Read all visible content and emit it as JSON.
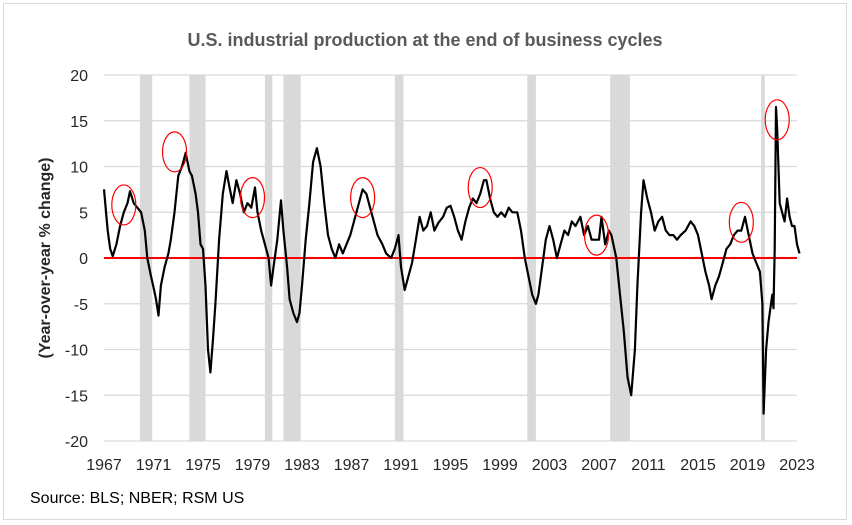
{
  "chart_data": {
    "type": "line",
    "title": "U.S. industrial production at the end of business cycles",
    "xlabel": "",
    "ylabel": "(Year-over-year % change)",
    "xlim": [
      1967,
      2023
    ],
    "ylim": [
      -20,
      20
    ],
    "x_ticks": [
      "1967",
      "1971",
      "1975",
      "1979",
      "1983",
      "1987",
      "1991",
      "1995",
      "1999",
      "2003",
      "2007",
      "2011",
      "2015",
      "2019",
      "2023"
    ],
    "y_ticks": [
      20,
      15,
      10,
      5,
      0,
      -5,
      -10,
      -15,
      -20
    ],
    "grid": true,
    "zero_line_color": "#ff0000",
    "line_color": "#000000",
    "recession_color": "#d9d9d9",
    "annotation_color": "#ff0000",
    "recessions": [
      [
        1969.9,
        1970.9
      ],
      [
        1973.9,
        1975.2
      ],
      [
        1980.0,
        1980.6
      ],
      [
        1981.5,
        1982.9
      ],
      [
        1990.5,
        1991.2
      ],
      [
        2001.2,
        2001.9
      ],
      [
        2007.9,
        2009.5
      ],
      [
        2020.1,
        2020.4
      ]
    ],
    "highlighted_peaks": [
      [
        1968.6,
        5.8
      ],
      [
        1972.7,
        11.6
      ],
      [
        1979.0,
        6.6
      ],
      [
        1987.9,
        6.6
      ],
      [
        1997.4,
        7.7
      ],
      [
        2006.8,
        2.5
      ],
      [
        2018.5,
        3.9
      ],
      [
        2021.4,
        15.1
      ]
    ],
    "series": [
      {
        "x": [
          1967.0,
          1967.3,
          1967.5,
          1967.7,
          1968.0,
          1968.3,
          1968.6,
          1968.9,
          1969.1,
          1969.4,
          1969.7,
          1970.0,
          1970.3,
          1970.5,
          1970.8,
          1971.0,
          1971.2,
          1971.4,
          1971.6,
          1971.9,
          1972.2,
          1972.4,
          1972.7,
          1973.0,
          1973.3,
          1973.6,
          1973.9,
          1974.1,
          1974.4,
          1974.6,
          1974.8,
          1975.0,
          1975.2,
          1975.4,
          1975.6,
          1975.8,
          1976.0,
          1976.3,
          1976.6,
          1976.9,
          1977.1,
          1977.4,
          1977.7,
          1978.0,
          1978.3,
          1978.6,
          1978.9,
          1979.2,
          1979.4,
          1979.7,
          1980.0,
          1980.3,
          1980.5,
          1980.7,
          1981.0,
          1981.3,
          1981.5,
          1981.8,
          1982.0,
          1982.3,
          1982.6,
          1982.8,
          1983.0,
          1983.3,
          1983.6,
          1983.9,
          1984.2,
          1984.5,
          1984.8,
          1985.1,
          1985.4,
          1985.7,
          1986.0,
          1986.3,
          1986.6,
          1986.9,
          1987.2,
          1987.6,
          1987.9,
          1988.2,
          1988.5,
          1988.8,
          1989.1,
          1989.5,
          1989.8,
          1990.2,
          1990.5,
          1990.8,
          1991.0,
          1991.3,
          1991.6,
          1991.9,
          1992.2,
          1992.5,
          1992.8,
          1993.1,
          1993.4,
          1993.7,
          1994.0,
          1994.4,
          1994.7,
          1995.0,
          1995.3,
          1995.6,
          1995.9,
          1996.2,
          1996.5,
          1996.8,
          1997.1,
          1997.4,
          1997.7,
          1997.9,
          1998.2,
          1998.5,
          1998.8,
          1999.1,
          1999.4,
          1999.7,
          2000.0,
          2000.4,
          2000.7,
          2001.0,
          2001.3,
          2001.6,
          2001.9,
          2002.1,
          2002.4,
          2002.7,
          2003.0,
          2003.3,
          2003.6,
          2003.9,
          2004.2,
          2004.5,
          2004.8,
          2005.1,
          2005.5,
          2005.8,
          2006.1,
          2006.4,
          2006.7,
          2007.0,
          2007.2,
          2007.5,
          2007.8,
          2008.0,
          2008.4,
          2008.7,
          2009.0,
          2009.3,
          2009.6,
          2009.9,
          2010.1,
          2010.4,
          2010.6,
          2010.9,
          2011.2,
          2011.5,
          2011.8,
          2012.1,
          2012.4,
          2012.7,
          2013.0,
          2013.3,
          2013.6,
          2014.0,
          2014.4,
          2014.7,
          2015.0,
          2015.3,
          2015.6,
          2015.9,
          2016.1,
          2016.4,
          2016.7,
          2017.0,
          2017.3,
          2017.6,
          2017.9,
          2018.2,
          2018.5,
          2018.8,
          2019.1,
          2019.4,
          2019.7,
          2020.0,
          2020.2,
          2020.3,
          2020.5,
          2020.7,
          2020.9,
          2021.0,
          2021.1,
          2021.2,
          2021.3,
          2021.4,
          2021.6,
          2021.8,
          2022.0,
          2022.2,
          2022.4,
          2022.6,
          2022.8,
          2023.0,
          2023.2
        ],
        "y": [
          7.5,
          3,
          1,
          0.2,
          1.5,
          3.5,
          5,
          6,
          7.3,
          6,
          5.5,
          5,
          3,
          0,
          -2,
          -3.2,
          -4.5,
          -6.3,
          -3,
          -1,
          0.5,
          2,
          5,
          9,
          10,
          11.5,
          9.5,
          9,
          7,
          5,
          1.5,
          1,
          -3,
          -10,
          -12.5,
          -9,
          -5,
          2,
          7,
          9.5,
          8,
          6,
          8.5,
          7,
          5,
          6,
          5.5,
          7.7,
          5,
          3,
          1.5,
          0,
          -3,
          -1,
          2,
          6.3,
          3,
          -1,
          -4.5,
          -6,
          -7,
          -6,
          -3,
          2,
          6,
          10.5,
          12,
          10,
          6,
          2.5,
          1,
          0,
          1.5,
          0.5,
          1.5,
          2.5,
          4,
          6,
          7.5,
          7,
          5.5,
          4,
          2.5,
          1.5,
          0.5,
          0,
          1,
          2.5,
          -1,
          -3.5,
          -2,
          -0.5,
          2,
          4.5,
          3,
          3.5,
          5,
          3,
          3.8,
          4.5,
          5.5,
          5.7,
          4.5,
          3,
          2,
          4,
          5.5,
          6.5,
          6,
          7,
          8.5,
          8.5,
          6.5,
          5,
          4.5,
          5,
          4.5,
          5.5,
          5,
          5,
          3,
          0,
          -2,
          -4,
          -5,
          -4,
          -1,
          2,
          3.5,
          2,
          0,
          1.5,
          3,
          2.5,
          4,
          3.5,
          4.5,
          2.5,
          3.5,
          2,
          2,
          2,
          4.5,
          1.5,
          3,
          2.5,
          0,
          -4,
          -8,
          -13,
          -15,
          -10,
          -3,
          5,
          8.5,
          6.5,
          5,
          3,
          4,
          4.5,
          3,
          2.5,
          2.5,
          2,
          2.5,
          3,
          4,
          3.5,
          2.5,
          0.5,
          -1.5,
          -3,
          -4.5,
          -3,
          -2,
          -0.5,
          1,
          1.5,
          2.5,
          3,
          3,
          4.5,
          2.5,
          0.5,
          -0.5,
          -1.5,
          -5,
          -17,
          -10,
          -7,
          -5,
          -4,
          -5.5,
          1,
          16.5,
          14,
          6,
          5,
          4,
          6.5,
          4.5,
          3.5,
          3.5,
          1.5,
          0.5
        ]
      }
    ]
  },
  "source": "Source: BLS; NBER; RSM US"
}
